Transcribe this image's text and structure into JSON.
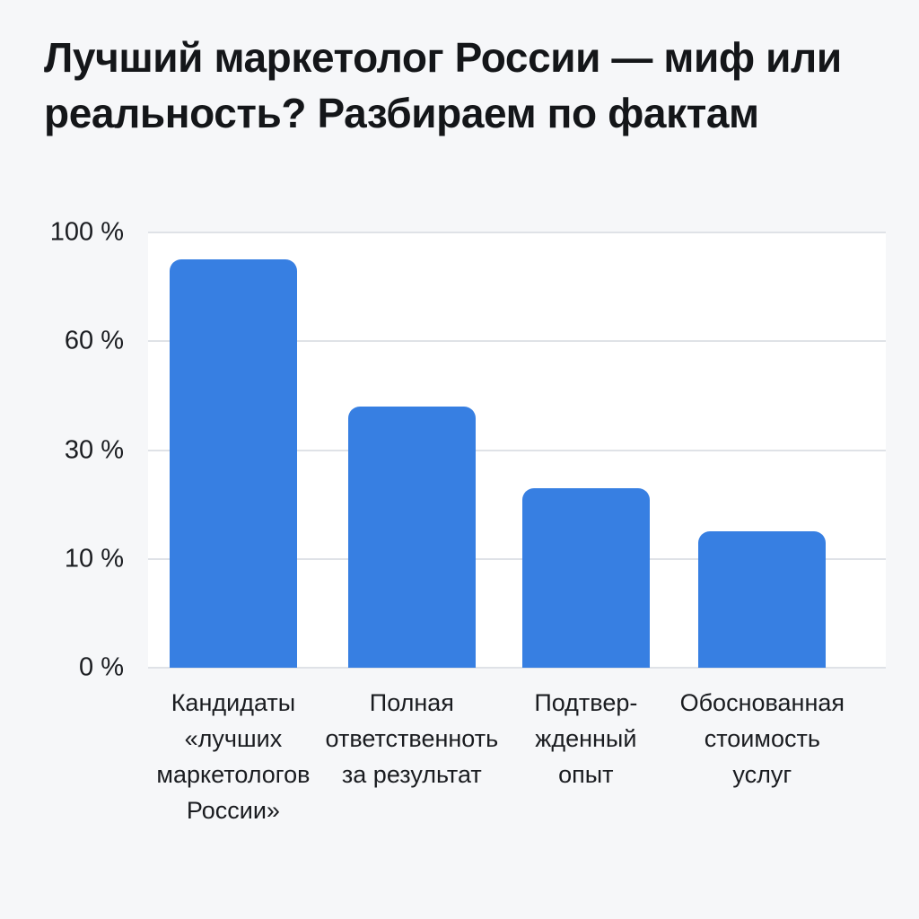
{
  "title": "Лучший маркетолог России — миф или\nреальность? Разбираем по фактам",
  "colors": {
    "background": "#f6f7f9",
    "plot_background": "#ffffff",
    "bar": "#377fe2",
    "gridline": "#dfe2e7",
    "text": "#1a1c20"
  },
  "chart_data": {
    "type": "bar",
    "title": "Лучший маркетолог России — миф или реальность? Разбираем по фактам",
    "categories": [
      "Кандидаты\n«лучших\nмаркетологов\nРоссии»",
      "Полная\nответственноть\nза результат",
      "Подтвер-\nжденный\nопыт",
      "Обоснованная\nстоимость\nуслуг"
    ],
    "values": [
      90,
      42,
      23,
      15
    ],
    "unit": "%",
    "y_ticks": [
      0,
      10,
      30,
      60,
      100
    ],
    "y_tick_labels": [
      "0 %",
      "10 %",
      "30 %",
      "60 %",
      "100 %"
    ],
    "ylabel": "",
    "xlabel": "",
    "axis_scale": "non-linear: tick values 0/10/30/60/100 are evenly spaced",
    "grid": true,
    "legend": false,
    "bar_color": "#377fe2"
  }
}
